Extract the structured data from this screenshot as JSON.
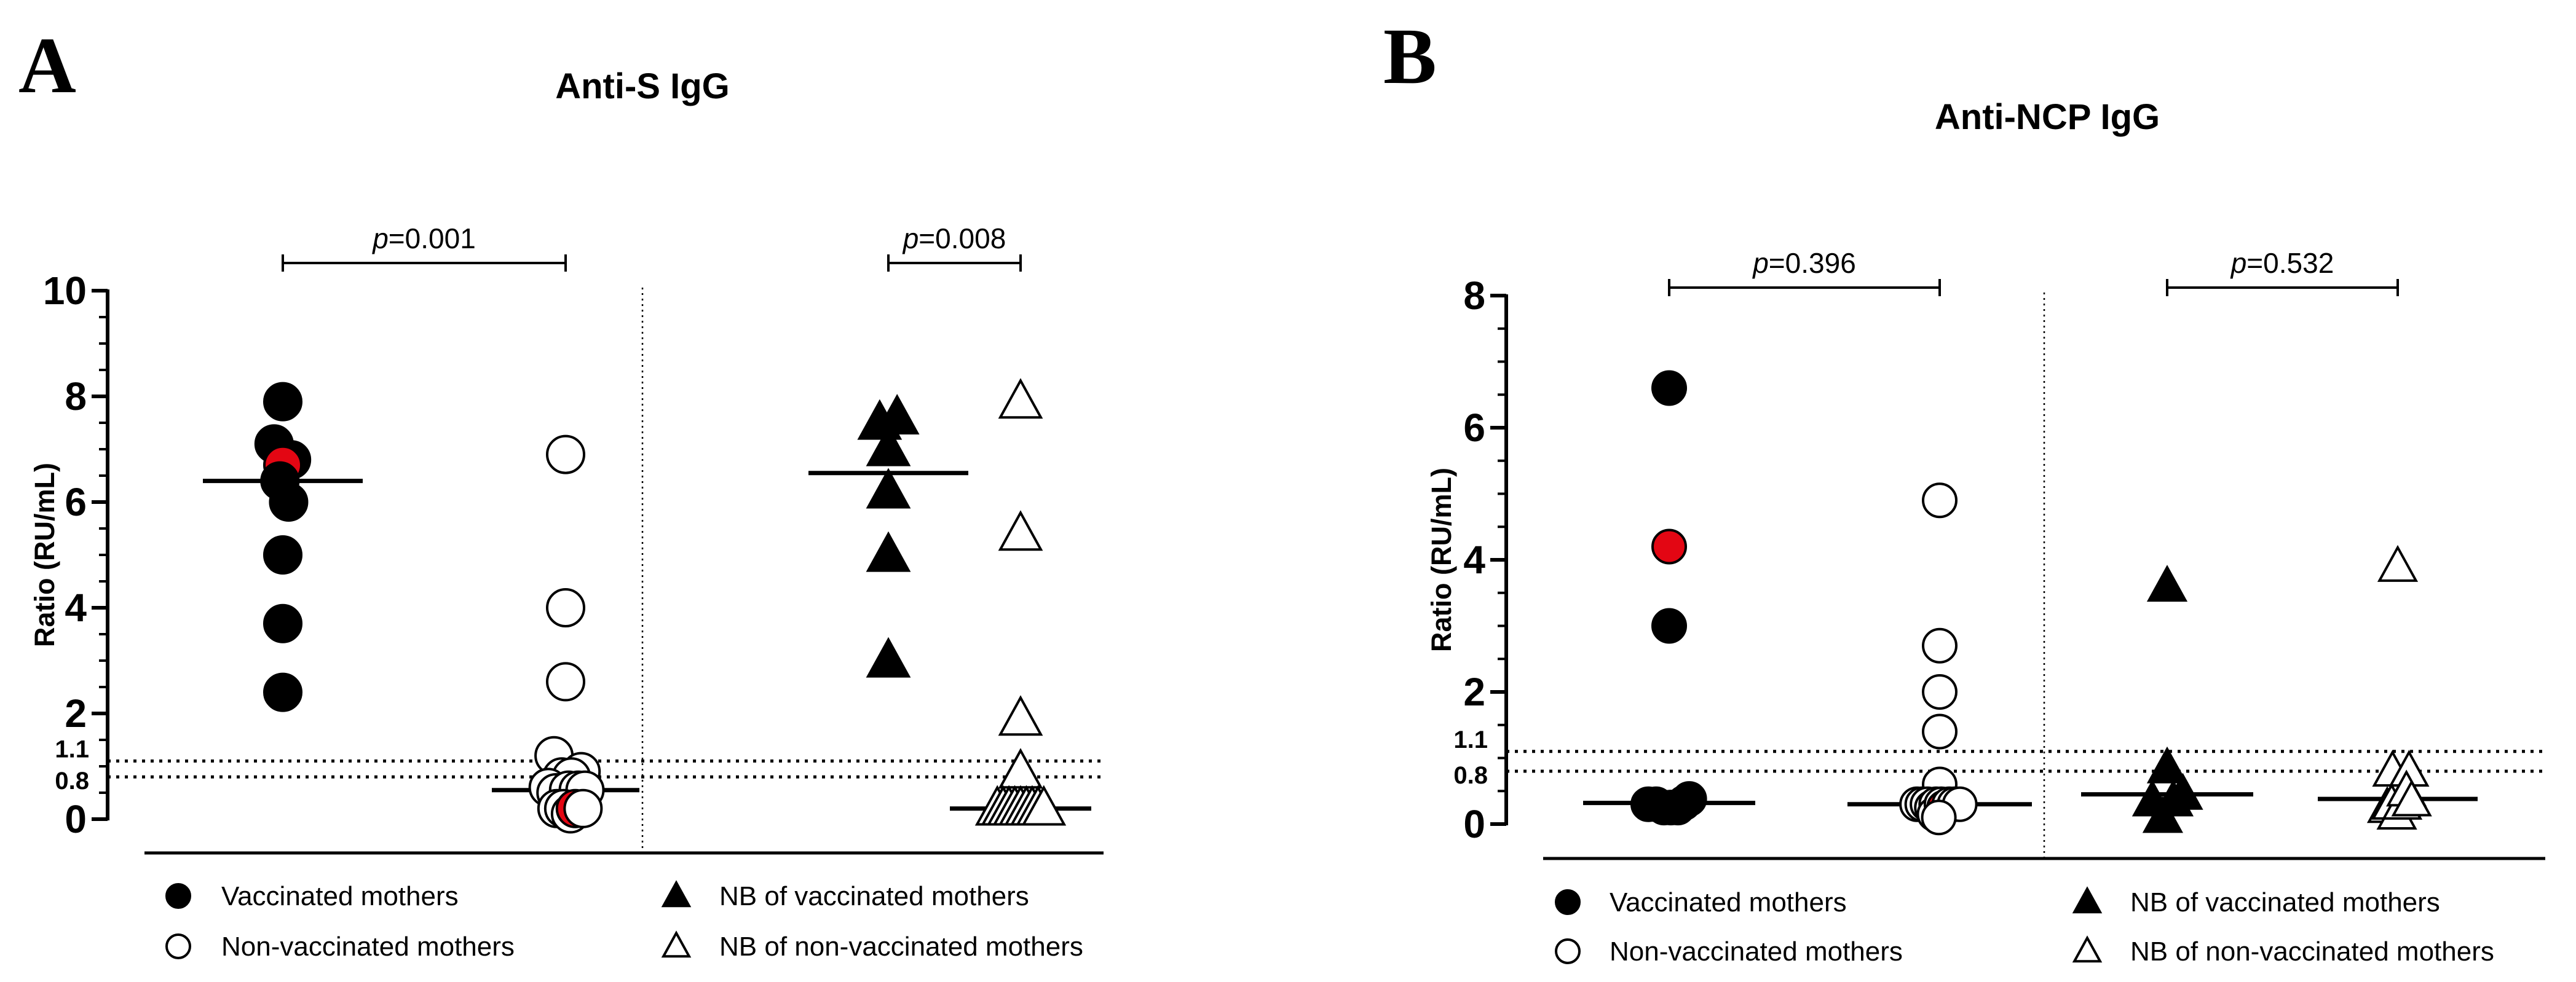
{
  "chart_data": [
    {
      "panel": "A",
      "type": "scatter",
      "title": "Anti-S IgG",
      "ylabel": "Ratio (RU/mL)",
      "ylim": [
        0,
        10
      ],
      "ytick_labels": [
        "0",
        "2",
        "4",
        "6",
        "8",
        "10"
      ],
      "cutoff_labels": [
        "0.8",
        "1.1"
      ],
      "cutoffs": [
        0.8,
        1.1
      ],
      "comparisons": [
        {
          "p_prefix": "p",
          "p_rest": "=0.001",
          "groups": [
            "Vaccinated mothers",
            "Non-vaccinated mothers"
          ]
        },
        {
          "p_prefix": "p",
          "p_rest": "=0.008",
          "groups": [
            "NB of vaccinated mothers",
            "NB of non-vaccinated mothers"
          ]
        }
      ],
      "series": [
        {
          "name": "Vaccinated mothers",
          "marker": "circle-filled",
          "median": 6.4,
          "points": [
            {
              "dx": 0,
              "y": 7.9
            },
            {
              "dx": -0.45,
              "y": 7.1
            },
            {
              "dx": 0.45,
              "y": 6.8
            },
            {
              "dx": 0,
              "y": 6.7,
              "highlight": true
            },
            {
              "dx": -0.15,
              "y": 6.4
            },
            {
              "dx": 0.3,
              "y": 6.0
            },
            {
              "dx": 0,
              "y": 5.0
            },
            {
              "dx": 0,
              "y": 3.7
            },
            {
              "dx": 0,
              "y": 2.4
            }
          ]
        },
        {
          "name": "Non-vaccinated mothers",
          "marker": "circle-open",
          "median": 0.55,
          "points": [
            {
              "dx": 0,
              "y": 6.9
            },
            {
              "dx": 0,
              "y": 4.0
            },
            {
              "dx": 0,
              "y": 2.6
            },
            {
              "dx": -0.6,
              "y": 1.2
            },
            {
              "dx": 0.8,
              "y": 0.9
            },
            {
              "dx": -0.2,
              "y": 0.8
            },
            {
              "dx": 0.3,
              "y": 0.8
            },
            {
              "dx": -0.9,
              "y": 0.6
            },
            {
              "dx": -0.5,
              "y": 0.5
            },
            {
              "dx": 0.15,
              "y": 0.55
            },
            {
              "dx": 0.65,
              "y": 0.55
            },
            {
              "dx": 1.0,
              "y": 0.55
            },
            {
              "dx": -0.45,
              "y": 0.2
            },
            {
              "dx": -0.1,
              "y": 0.2
            },
            {
              "dx": 0.25,
              "y": 0.1
            },
            {
              "dx": 0.5,
              "y": 0.2,
              "highlight": true
            },
            {
              "dx": 0.9,
              "y": 0.2
            }
          ]
        },
        {
          "name": "NB of vaccinated mothers",
          "marker": "triangle-filled",
          "median": 6.55,
          "points": [
            {
              "dx": -0.45,
              "y": 7.5
            },
            {
              "dx": 0.45,
              "y": 7.6
            },
            {
              "dx": 0,
              "y": 7.0
            },
            {
              "dx": 0,
              "y": 6.2
            },
            {
              "dx": 0,
              "y": 5.0
            },
            {
              "dx": 0,
              "y": 3.0
            }
          ]
        },
        {
          "name": "NB of non-vaccinated mothers",
          "marker": "triangle-open",
          "median": 0.2,
          "points": [
            {
              "dx": 0,
              "y": 7.9
            },
            {
              "dx": 0,
              "y": 5.4
            },
            {
              "dx": 0,
              "y": 1.9
            },
            {
              "dx": 0,
              "y": 0.9
            },
            {
              "dx": -1.2,
              "y": 0.2
            },
            {
              "dx": -0.9,
              "y": 0.2
            },
            {
              "dx": -0.6,
              "y": 0.2
            },
            {
              "dx": -0.3,
              "y": 0.2
            },
            {
              "dx": 0,
              "y": 0.2
            },
            {
              "dx": 0.3,
              "y": 0.2
            },
            {
              "dx": 0.6,
              "y": 0.2
            },
            {
              "dx": 0.9,
              "y": 0.2
            },
            {
              "dx": 1.2,
              "y": 0.2
            }
          ]
        }
      ]
    },
    {
      "panel": "B",
      "type": "scatter",
      "title": "Anti-NCP IgG",
      "ylabel": "Ratio (RU/mL)",
      "ylim": [
        0,
        8
      ],
      "ytick_labels": [
        "0",
        "2",
        "4",
        "6",
        "8"
      ],
      "cutoff_labels": [
        "0.8",
        "1.1"
      ],
      "cutoffs": [
        0.8,
        1.1
      ],
      "comparisons": [
        {
          "p_prefix": "p",
          "p_rest": "=0.396",
          "groups": [
            "Vaccinated mothers",
            "Non-vaccinated mothers"
          ]
        },
        {
          "p_prefix": "p",
          "p_rest": "=0.532",
          "groups": [
            "NB of vaccinated mothers",
            "NB of non-vaccinated mothers"
          ]
        }
      ],
      "series": [
        {
          "name": "Vaccinated mothers",
          "marker": "circle-filled",
          "median": 0.32,
          "points": [
            {
              "dx": 0,
              "y": 6.6
            },
            {
              "dx": 0,
              "y": 4.2,
              "highlight": true
            },
            {
              "dx": 0,
              "y": 3.0
            },
            {
              "dx": -1.2,
              "y": 0.3
            },
            {
              "dx": -0.75,
              "y": 0.3
            },
            {
              "dx": -0.3,
              "y": 0.25
            },
            {
              "dx": 0.1,
              "y": 0.25
            },
            {
              "dx": 0.5,
              "y": 0.25
            },
            {
              "dx": 0.85,
              "y": 0.32
            },
            {
              "dx": 1.15,
              "y": 0.38
            }
          ]
        },
        {
          "name": "Non-vaccinated mothers",
          "marker": "circle-open",
          "median": 0.3,
          "points": [
            {
              "dx": 0,
              "y": 4.9
            },
            {
              "dx": 0,
              "y": 2.7
            },
            {
              "dx": 0,
              "y": 2.0
            },
            {
              "dx": 0,
              "y": 1.4
            },
            {
              "dx": 0,
              "y": 0.6
            },
            {
              "dx": -1.3,
              "y": 0.3
            },
            {
              "dx": -1.0,
              "y": 0.3
            },
            {
              "dx": -0.7,
              "y": 0.3
            },
            {
              "dx": -0.45,
              "y": 0.25
            },
            {
              "dx": -0.2,
              "y": 0.3
            },
            {
              "dx": -0.3,
              "y": 0.15
            },
            {
              "dx": 0.1,
              "y": 0.3
            },
            {
              "dx": 0.25,
              "y": 0.25,
              "highlight": true
            },
            {
              "dx": 0.55,
              "y": 0.3
            },
            {
              "dx": 0.85,
              "y": 0.3
            },
            {
              "dx": 1.15,
              "y": 0.3
            },
            {
              "dx": -0.05,
              "y": 0.1
            }
          ]
        },
        {
          "name": "NB of vaccinated mothers",
          "marker": "triangle-filled",
          "median": 0.45,
          "points": [
            {
              "dx": 0,
              "y": 3.6
            },
            {
              "dx": 0,
              "y": 0.85
            },
            {
              "dx": -0.85,
              "y": 0.35
            },
            {
              "dx": -0.25,
              "y": 0.1
            },
            {
              "dx": 0.35,
              "y": 0.35
            },
            {
              "dx": 0.9,
              "y": 0.45
            }
          ]
        },
        {
          "name": "NB of non-vaccinated mothers",
          "marker": "triangle-open",
          "median": 0.38,
          "points": [
            {
              "dx": 0,
              "y": 3.9
            },
            {
              "dx": -0.3,
              "y": 0.8
            },
            {
              "dx": 0.65,
              "y": 0.8
            },
            {
              "dx": -0.6,
              "y": 0.25
            },
            {
              "dx": -0.35,
              "y": 0.3
            },
            {
              "dx": -0.05,
              "y": 0.15
            },
            {
              "dx": 0.25,
              "y": 0.3
            },
            {
              "dx": 0.5,
              "y": 0.5
            },
            {
              "dx": 0.8,
              "y": 0.35
            }
          ]
        }
      ]
    }
  ],
  "colors": {
    "ink": "#000000",
    "highlight": "#e30613",
    "background": "#ffffff"
  }
}
